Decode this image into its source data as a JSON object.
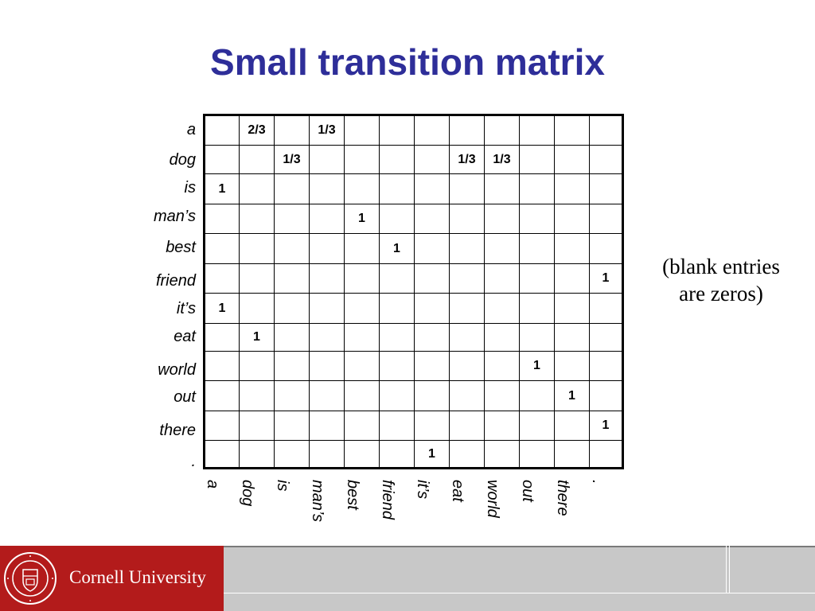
{
  "title": "Small transition matrix",
  "row_labels": [
    "a",
    "dog",
    "is",
    "man’s",
    "best",
    "friend",
    "it’s",
    "eat",
    "world",
    "out",
    "there",
    "."
  ],
  "col_labels": [
    "a",
    "dog",
    "is",
    "man’s",
    "best",
    "friend",
    "it’s",
    "eat",
    "world",
    "out",
    "there",
    "."
  ],
  "matrix": [
    [
      "",
      "2/3",
      "",
      "1/3",
      "",
      "",
      "",
      "",
      "",
      "",
      "",
      ""
    ],
    [
      "",
      "",
      "1/3",
      "",
      "",
      "",
      "",
      "1/3",
      "1/3",
      "",
      "",
      ""
    ],
    [
      "1",
      "",
      "",
      "",
      "",
      "",
      "",
      "",
      "",
      "",
      "",
      ""
    ],
    [
      "",
      "",
      "",
      "",
      "1",
      "",
      "",
      "",
      "",
      "",
      "",
      ""
    ],
    [
      "",
      "",
      "",
      "",
      "",
      "1",
      "",
      "",
      "",
      "",
      "",
      ""
    ],
    [
      "",
      "",
      "",
      "",
      "",
      "",
      "",
      "",
      "",
      "",
      "",
      "1"
    ],
    [
      "1",
      "",
      "",
      "",
      "",
      "",
      "",
      "",
      "",
      "",
      "",
      ""
    ],
    [
      "",
      "1",
      "",
      "",
      "",
      "",
      "",
      "",
      "",
      "",
      "",
      ""
    ],
    [
      "",
      "",
      "",
      "",
      "",
      "",
      "",
      "",
      "",
      "1",
      "",
      ""
    ],
    [
      "",
      "",
      "",
      "",
      "",
      "",
      "",
      "",
      "",
      "",
      "1",
      ""
    ],
    [
      "",
      "",
      "",
      "",
      "",
      "",
      "",
      "",
      "",
      "",
      "",
      "1"
    ],
    [
      "",
      "",
      "",
      "",
      "",
      "",
      "1",
      "",
      "",
      "",
      "",
      ""
    ]
  ],
  "note": {
    "line1": "(blank entries",
    "line2": "are zeros)"
  },
  "footer": {
    "university": "Cornell University",
    "logo": "cornell-seal"
  },
  "colors": {
    "title": "#2E2E99",
    "footer_red": "#B31B1B",
    "footer_gray": "#C8C8C8"
  }
}
